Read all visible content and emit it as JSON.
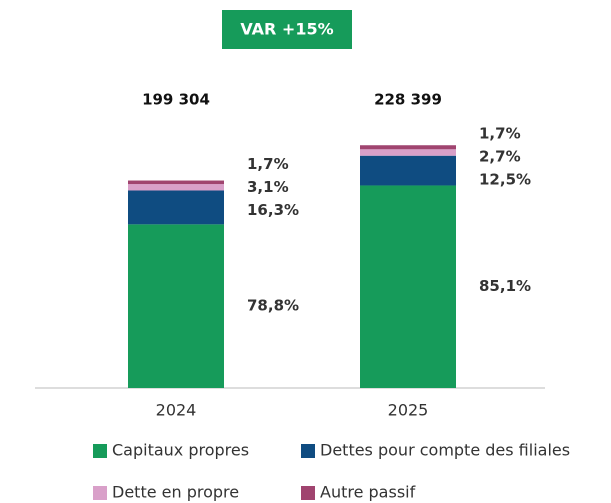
{
  "chart_data": {
    "type": "stacked-bar",
    "annotation": "VAR +15%",
    "categories": [
      "2024",
      "2025"
    ],
    "totals": {
      "values": [
        199304,
        228399
      ],
      "value_labels": [
        "199 304",
        "228 399"
      ]
    },
    "series": [
      {
        "name": "Capitaux propres",
        "color": "#169b5a",
        "values": [
          78.8,
          85.1
        ],
        "value_labels": [
          "78,8%",
          "85,1%"
        ]
      },
      {
        "name": "Dettes pour compte des filiales",
        "color": "#0f4c81",
        "values": [
          16.3,
          12.5
        ],
        "value_labels": [
          "16,3%",
          "12,5%"
        ]
      },
      {
        "name": "Dette en propre",
        "color": "#d9a0c9",
        "values": [
          3.1,
          2.7
        ],
        "value_labels": [
          "3,1%",
          "2,7%"
        ]
      },
      {
        "name": "Autre passif",
        "color": "#a0446f",
        "values": [
          1.7,
          1.7
        ],
        "value_labels": [
          "1,7%",
          "1,7%"
        ]
      }
    ]
  }
}
